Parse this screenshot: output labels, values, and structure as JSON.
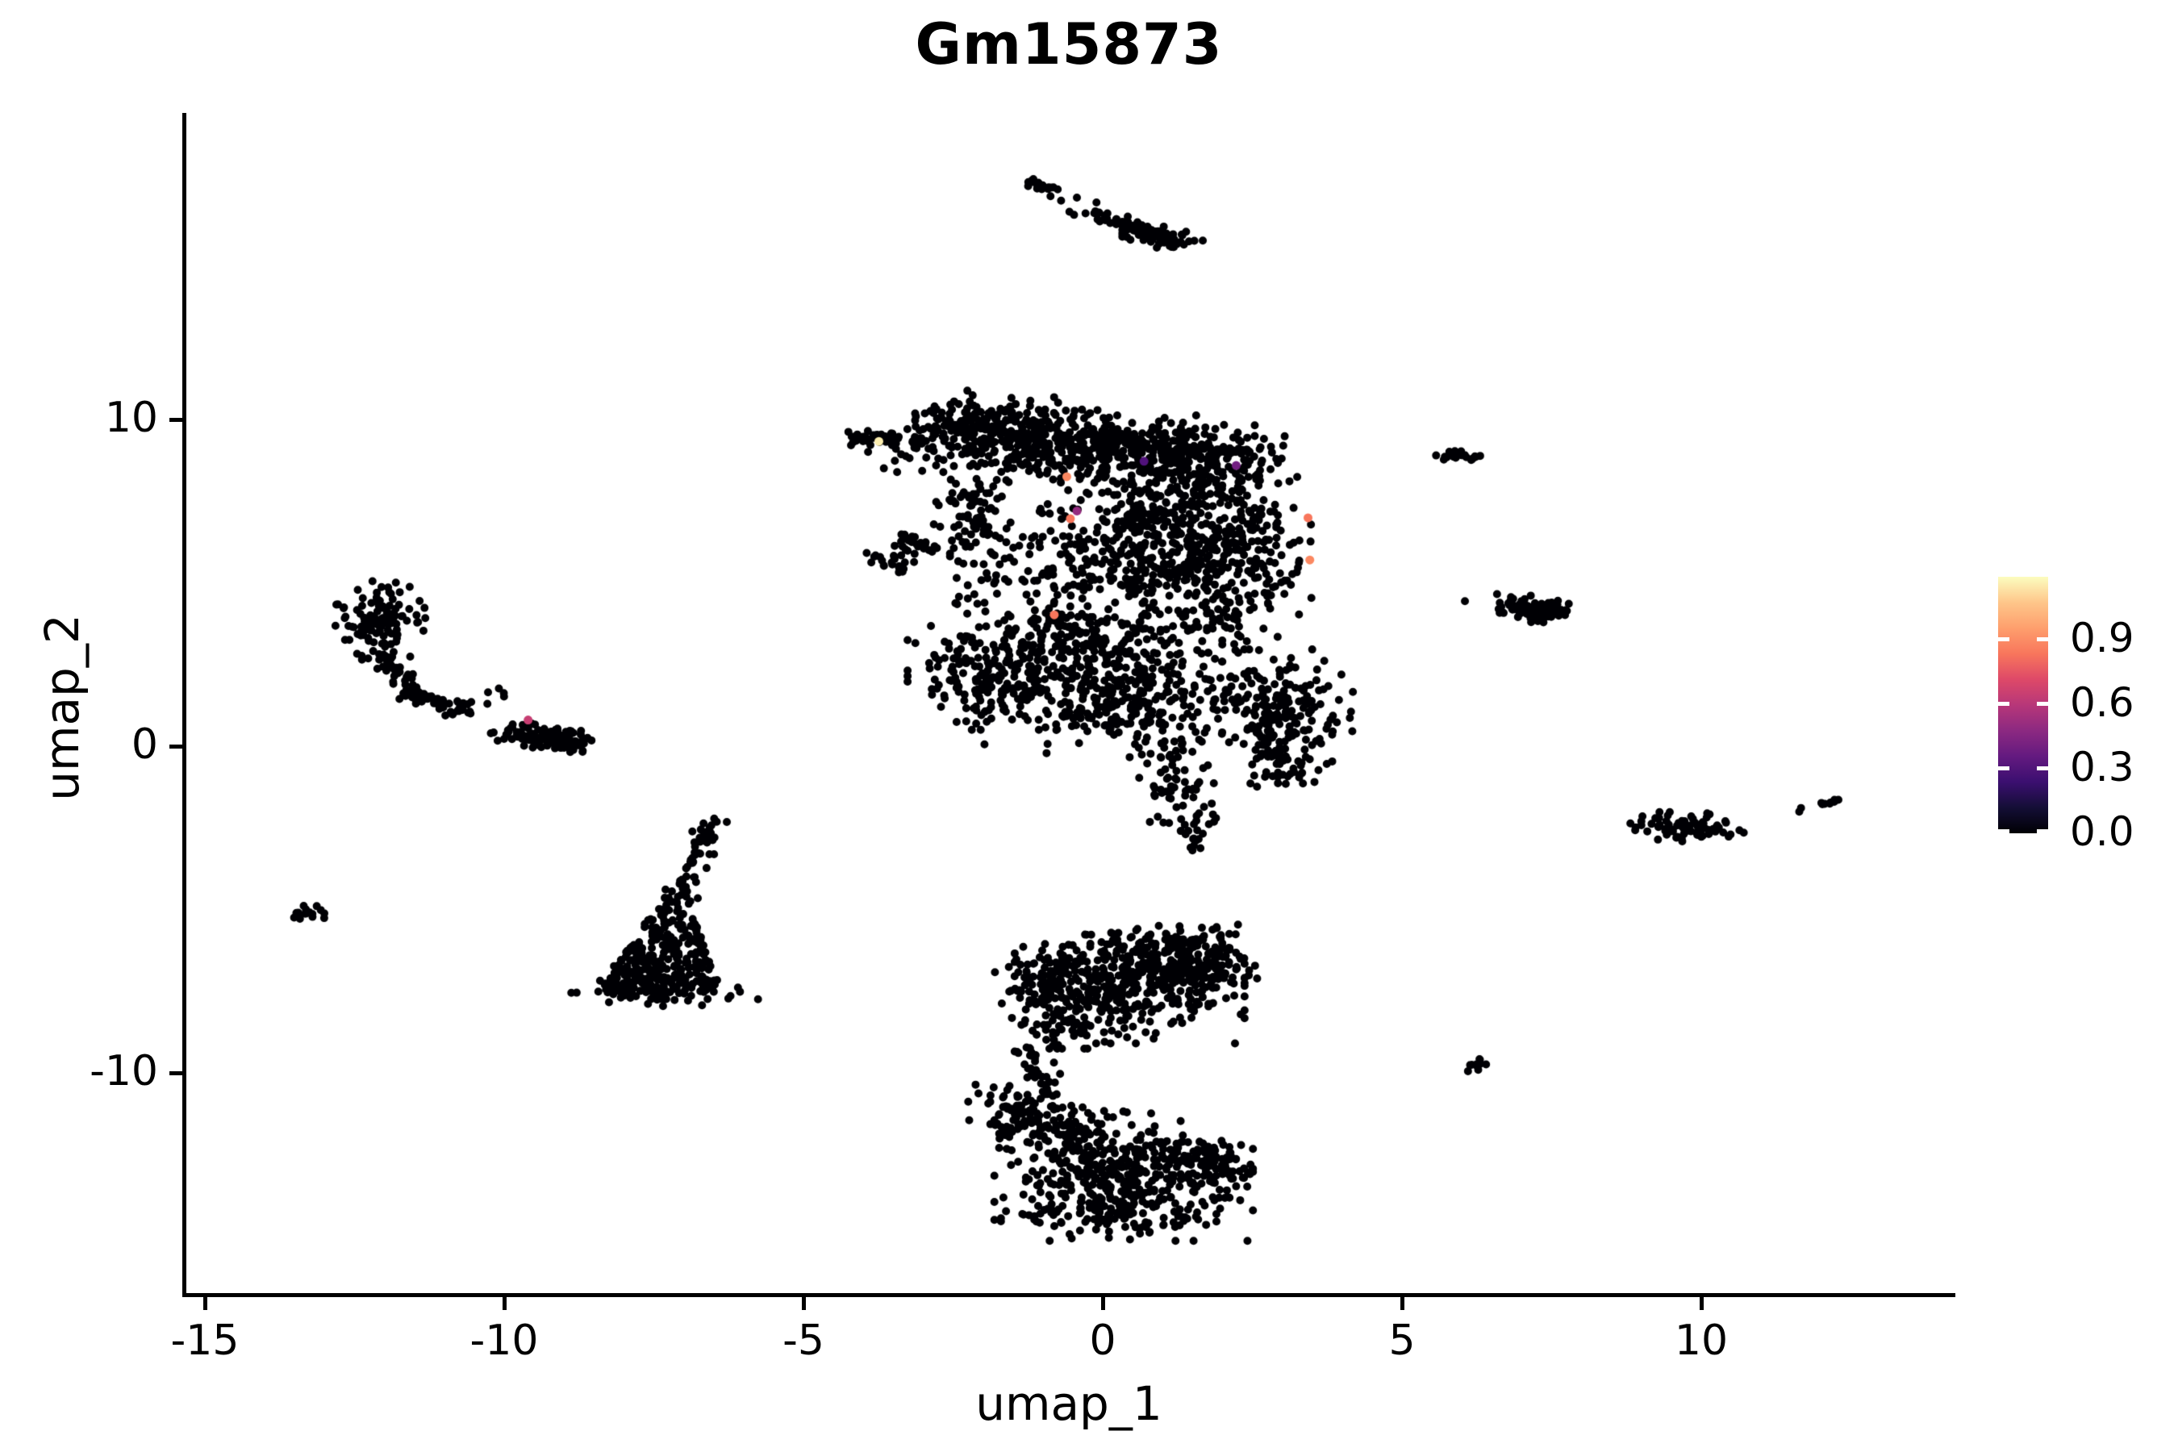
{
  "chart_data": {
    "type": "scatter",
    "title": "Gm15873",
    "xlabel": "umap_1",
    "ylabel": "umap_2",
    "xticks": [
      -15,
      -10,
      -5,
      0,
      5,
      10
    ],
    "yticks": [
      10,
      0,
      -10
    ],
    "xlim": [
      -15.3,
      14.2
    ],
    "ylim": [
      -16.8,
      19.4
    ],
    "grid": false,
    "legend_position": "right",
    "point_color": "#000004",
    "point_radius_px": 5,
    "colorbar": {
      "colormap": "magma",
      "tick_labels": [
        "0.9",
        "0.6",
        "0.3",
        "0.0"
      ],
      "tick_values": [
        0.9,
        0.6,
        0.3,
        0.0
      ],
      "vmin": 0.0,
      "vmax": 1.19,
      "stops": [
        [
          "#fcfdbf",
          0
        ],
        [
          "#fec68a",
          10
        ],
        [
          "#fe9f6d",
          20
        ],
        [
          "#f8765c",
          30
        ],
        [
          "#de4968",
          40
        ],
        [
          "#b73779",
          50
        ],
        [
          "#8c2981",
          60
        ],
        [
          "#641a80",
          70
        ],
        [
          "#3b0f70",
          80
        ],
        [
          "#140e36",
          90
        ],
        [
          "#000004",
          100
        ]
      ]
    },
    "seed": 1234,
    "clusters": [
      {
        "type": "seg",
        "x1": -1.28,
        "y1": 17.3,
        "x2": -0.78,
        "y2": 16.95,
        "w": 0.07,
        "n": 22
      },
      {
        "type": "gauss",
        "cx": -0.45,
        "cy": 16.55,
        "sx": 0.25,
        "sy": 0.2,
        "n": 6
      },
      {
        "type": "seg",
        "x1": -0.15,
        "y1": 16.15,
        "x2": 0.55,
        "y2": 15.95,
        "w": 0.12,
        "n": 35
      },
      {
        "type": "seg",
        "x1": 0.45,
        "y1": 15.95,
        "x2": 1.25,
        "y2": 15.4,
        "w": 0.13,
        "n": 45
      },
      {
        "type": "gauss",
        "cx": 1.0,
        "cy": 15.55,
        "sx": 0.28,
        "sy": 0.18,
        "n": 30
      },
      {
        "type": "seg",
        "x1": -4.2,
        "y1": 9.5,
        "x2": -3.45,
        "y2": 9.3,
        "w": 0.1,
        "n": 45
      },
      {
        "type": "gauss",
        "cx": -3.2,
        "cy": 9.25,
        "sx": 0.3,
        "sy": 0.25,
        "n": 18
      },
      {
        "type": "gauss",
        "cx": -3.0,
        "cy": 8.4,
        "sx": 0.45,
        "sy": 0.35,
        "n": 8
      },
      {
        "type": "gauss",
        "cx": -2.3,
        "cy": 9.8,
        "sx": 0.5,
        "sy": 0.45,
        "n": 150
      },
      {
        "type": "gauss",
        "cx": -1.1,
        "cy": 9.4,
        "sx": 0.65,
        "sy": 0.55,
        "n": 210
      },
      {
        "type": "gauss",
        "cx": 0.5,
        "cy": 9.1,
        "sx": 0.85,
        "sy": 0.5,
        "n": 260
      },
      {
        "type": "gauss",
        "cx": 1.9,
        "cy": 8.7,
        "sx": 0.55,
        "sy": 0.5,
        "n": 150
      },
      {
        "type": "seg",
        "x1": -3.35,
        "y1": 6.4,
        "x2": -2.8,
        "y2": 6.0,
        "w": 0.1,
        "n": 22
      },
      {
        "type": "gauss",
        "cx": -3.5,
        "cy": 5.7,
        "sx": 0.22,
        "sy": 0.18,
        "n": 26
      },
      {
        "type": "gauss",
        "cx": -2.15,
        "cy": 7.0,
        "sx": 0.28,
        "sy": 1.1,
        "n": 100
      },
      {
        "type": "gauss",
        "cx": -0.7,
        "cy": 5.9,
        "sx": 0.85,
        "sy": 1.2,
        "n": 170
      },
      {
        "type": "gauss",
        "cx": 1.1,
        "cy": 6.6,
        "sx": 0.75,
        "sy": 1.25,
        "n": 400
      },
      {
        "type": "gauss",
        "cx": 2.3,
        "cy": 5.6,
        "sx": 0.5,
        "sy": 1.1,
        "n": 190
      },
      {
        "type": "gauss",
        "cx": 0.0,
        "cy": 3.1,
        "sx": 1.1,
        "sy": 0.75,
        "n": 250
      },
      {
        "type": "gauss",
        "cx": -1.7,
        "cy": 2.3,
        "sx": 0.65,
        "sy": 0.75,
        "n": 220
      },
      {
        "type": "gauss",
        "cx": 0.6,
        "cy": 1.3,
        "sx": 1.2,
        "sy": 0.65,
        "n": 280
      },
      {
        "type": "gauss",
        "cx": 3.1,
        "cy": 0.9,
        "sx": 0.55,
        "sy": 0.85,
        "n": 150
      },
      {
        "type": "seg",
        "x1": 1.0,
        "y1": -0.1,
        "x2": 1.5,
        "y2": -2.5,
        "w": 0.28,
        "n": 70
      },
      {
        "type": "gauss",
        "cx": 1.5,
        "cy": -2.85,
        "sx": 0.12,
        "sy": 0.18,
        "n": 12
      },
      {
        "type": "seg",
        "x1": 2.7,
        "y1": 0.6,
        "x2": 3.1,
        "y2": -1.1,
        "w": 0.2,
        "n": 45
      },
      {
        "type": "gauss",
        "cx": -12.1,
        "cy": 3.85,
        "sx": 0.35,
        "sy": 0.5,
        "n": 120
      },
      {
        "type": "seg",
        "x1": -12.1,
        "y1": 3.0,
        "x2": -11.55,
        "y2": 1.6,
        "w": 0.14,
        "n": 45
      },
      {
        "type": "seg",
        "x1": -11.55,
        "y1": 1.6,
        "x2": -10.6,
        "y2": 1.0,
        "w": 0.13,
        "n": 45
      },
      {
        "type": "gauss",
        "cx": -10.35,
        "cy": 1.45,
        "sx": 0.25,
        "sy": 0.2,
        "n": 7
      },
      {
        "type": "seg",
        "x1": -9.95,
        "y1": 0.45,
        "x2": -8.8,
        "y2": 0.15,
        "w": 0.16,
        "n": 120
      },
      {
        "type": "seg",
        "x1": -6.5,
        "y1": -2.15,
        "x2": -6.78,
        "y2": -3.5,
        "w": 0.11,
        "n": 30
      },
      {
        "type": "seg",
        "x1": -6.78,
        "y1": -3.5,
        "x2": -7.1,
        "y2": -4.7,
        "w": 0.13,
        "n": 30
      },
      {
        "type": "wedge",
        "ax": -7.1,
        "ay": -4.6,
        "bx": -7.45,
        "by": -7.45,
        "hw0": 0.15,
        "hw1": 1.05,
        "n": 300
      },
      {
        "type": "gauss",
        "cx": -7.4,
        "cy": -7.55,
        "sx": 0.72,
        "sy": 0.17,
        "n": 60
      },
      {
        "type": "gauss",
        "cx": 0.45,
        "cy": -7.3,
        "sx": 0.8,
        "sy": 0.75,
        "n": 300
      },
      {
        "type": "gauss",
        "cx": -0.7,
        "cy": -7.7,
        "sx": 0.5,
        "sy": 0.65,
        "n": 150
      },
      {
        "type": "gauss",
        "cx": 1.5,
        "cy": -6.7,
        "sx": 0.45,
        "sy": 0.5,
        "n": 160
      },
      {
        "type": "seg",
        "x1": -1.3,
        "y1": -6.7,
        "x2": 2.1,
        "y2": -6.0,
        "w": 0.3,
        "n": 80
      },
      {
        "type": "seg",
        "x1": -1.25,
        "y1": -9.2,
        "x2": -0.9,
        "y2": -10.8,
        "w": 0.15,
        "n": 35
      },
      {
        "type": "seg",
        "x1": -1.7,
        "y1": -10.9,
        "x2": -0.4,
        "y2": -12.3,
        "w": 0.4,
        "n": 150
      },
      {
        "type": "gauss",
        "cx": 0.35,
        "cy": -13.1,
        "sx": 0.9,
        "sy": 0.85,
        "n": 360
      },
      {
        "type": "seg",
        "x1": 1.2,
        "y1": -12.5,
        "x2": 2.35,
        "y2": -13.0,
        "w": 0.28,
        "n": 90
      },
      {
        "type": "gauss",
        "cx": 0.1,
        "cy": -14.35,
        "sx": 0.75,
        "sy": 0.3,
        "n": 90
      },
      {
        "type": "gauss",
        "cx": 6.05,
        "cy": 8.85,
        "sx": 0.2,
        "sy": 0.1,
        "n": 24
      },
      {
        "type": "gauss",
        "cx": 7.3,
        "cy": 4.2,
        "sx": 0.3,
        "sy": 0.17,
        "n": 85
      },
      {
        "type": "gauss",
        "cx": 6.55,
        "cy": 4.35,
        "sx": 0.3,
        "sy": 0.14,
        "n": 8
      },
      {
        "type": "gauss",
        "cx": 9.75,
        "cy": -2.5,
        "sx": 0.4,
        "sy": 0.2,
        "n": 70
      },
      {
        "type": "gauss",
        "cx": 9.0,
        "cy": -2.35,
        "sx": 0.22,
        "sy": 0.1,
        "n": 6
      },
      {
        "type": "gauss",
        "cx": 11.65,
        "cy": -1.9,
        "sx": 0.06,
        "sy": 0.05,
        "n": 3
      },
      {
        "type": "seg",
        "x1": 12.0,
        "y1": -1.8,
        "x2": 12.3,
        "y2": -1.65,
        "w": 0.06,
        "n": 9
      },
      {
        "type": "seg",
        "x1": 6.08,
        "y1": -10.0,
        "x2": 6.35,
        "y2": -9.6,
        "w": 0.06,
        "n": 10
      },
      {
        "type": "gauss",
        "cx": -13.3,
        "cy": -5.05,
        "sx": 0.17,
        "sy": 0.14,
        "n": 15
      }
    ],
    "highlight_points": [
      {
        "x": -0.54,
        "y": 6.96,
        "color": "#f8765c"
      },
      {
        "x": -0.6,
        "y": 8.25,
        "color": "#fb8861"
      },
      {
        "x": -0.43,
        "y": 7.2,
        "color": "#952c80"
      },
      {
        "x": 0.69,
        "y": 8.72,
        "color": "#51127c"
      },
      {
        "x": 3.43,
        "y": 6.99,
        "color": "#f8765c"
      },
      {
        "x": 3.46,
        "y": 5.7,
        "color": "#fb8861"
      },
      {
        "x": -0.81,
        "y": 4.02,
        "color": "#f8765c"
      },
      {
        "x": -3.74,
        "y": 9.33,
        "color": "#fceeb0"
      },
      {
        "x": 2.23,
        "y": 8.59,
        "color": "#721f81"
      },
      {
        "x": -9.6,
        "y": 0.8,
        "color": "#c73e72"
      }
    ]
  }
}
